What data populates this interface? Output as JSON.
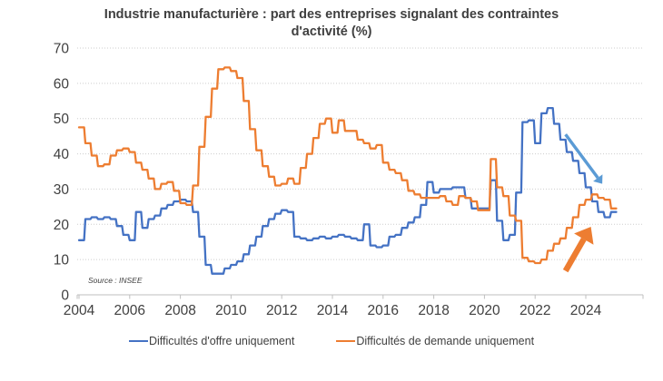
{
  "page": {
    "background": "#FFFFFF"
  },
  "chart": {
    "title": "Industrie manufacturière : part des entreprises signalant des contraintes d'activité (%)",
    "source_note": "Source : INSEE",
    "colors": {
      "offer_line": "#4472C4",
      "demand_line": "#ED7D31",
      "offer_trend_arrow": "#5B9BD5",
      "demand_trend_arrow": "#ED7D31",
      "grid": "#CDCDCD",
      "axis": "#BFBFBF",
      "text": "#404040"
    }
  },
  "chart_data": {
    "type": "line",
    "title": "Industrie manufacturière : part des entreprises signalant des contraintes d'activité (%)",
    "xlabel": "",
    "ylabel": "",
    "x_unit": "quarter",
    "x_start": 2004.0,
    "x_step": 0.25,
    "xlim": [
      2003.75,
      2025.4
    ],
    "ylim": [
      0,
      70
    ],
    "y_ticks": [
      0,
      10,
      20,
      30,
      40,
      50,
      60,
      70
    ],
    "x_tick_labels": [
      "2004",
      "2006",
      "2008",
      "2010",
      "2012",
      "2014",
      "2016",
      "2018",
      "2020",
      "2022",
      "2024"
    ],
    "grid": "horizontal-dotted",
    "legend_position": "bottom",
    "series": [
      {
        "name": "Difficultés d'offre uniquement",
        "color": "#4472C4",
        "values": [
          15.5,
          21.5,
          22,
          21.5,
          22,
          21.5,
          19.5,
          17,
          15.5,
          23.5,
          19,
          21.5,
          22.5,
          24.5,
          25.5,
          26.5,
          27,
          26.5,
          23.5,
          16.5,
          8.5,
          6,
          6,
          7.5,
          8.5,
          9.5,
          11.5,
          14,
          16.5,
          19.5,
          21.5,
          23,
          24,
          23.5,
          16.5,
          16,
          15.5,
          16,
          16.5,
          16,
          16.5,
          17,
          16.5,
          16,
          15.5,
          20,
          14,
          13.5,
          14,
          16.5,
          17,
          19,
          20.5,
          22,
          25.5,
          32,
          29,
          30,
          30,
          30.5,
          30.5,
          27.5,
          24.5,
          24.5,
          24.5,
          32.5,
          21,
          15.5,
          17,
          29,
          49,
          49.5,
          43,
          51.5,
          53,
          48.5,
          44,
          40.5,
          38,
          34.5,
          30.5,
          26.5,
          23.5,
          22,
          23.5
        ]
      },
      {
        "name": "Difficultés de demande uniquement",
        "color": "#ED7D31",
        "values": [
          47.5,
          43,
          39.5,
          36.5,
          37,
          39.5,
          41,
          41.5,
          40.5,
          37.5,
          35.5,
          33,
          30,
          31.5,
          32,
          29.5,
          26,
          25.5,
          31,
          42,
          50.5,
          58.5,
          64,
          64.5,
          63.5,
          61.5,
          55,
          47,
          41,
          36.5,
          33.5,
          31,
          31.5,
          33,
          31.5,
          36,
          40,
          44.5,
          48.5,
          50,
          46,
          49.5,
          46.5,
          46.5,
          44,
          43,
          41.5,
          42.5,
          37.5,
          35.5,
          34.5,
          32.5,
          29.5,
          28.5,
          27.5,
          27.5,
          27.5,
          28,
          26.5,
          25.5,
          28,
          27.5,
          26.5,
          24,
          24,
          38.5,
          30.5,
          28,
          22.5,
          21,
          10.5,
          9.5,
          9,
          10,
          12.5,
          14.5,
          16,
          19,
          22,
          25.5,
          27,
          28.5,
          27.5,
          27,
          24.5
        ]
      }
    ],
    "annotations": [
      {
        "type": "arrow",
        "name": "offer-declining-trend",
        "color": "#5B9BD5",
        "from": {
          "x": 2023.2,
          "y": 45.5
        },
        "to": {
          "x": 2024.65,
          "y": 31.5
        },
        "width": 3.4
      },
      {
        "type": "arrow",
        "name": "demand-rising-trend",
        "color": "#ED7D31",
        "from": {
          "x": 2023.2,
          "y": 6.8
        },
        "to": {
          "x": 2024.2,
          "y": 19.3
        },
        "width": 6.5
      }
    ]
  },
  "legend": {
    "items": [
      {
        "label": "Difficultés d'offre uniquement"
      },
      {
        "label": "Difficultés de demande uniquement"
      }
    ]
  }
}
